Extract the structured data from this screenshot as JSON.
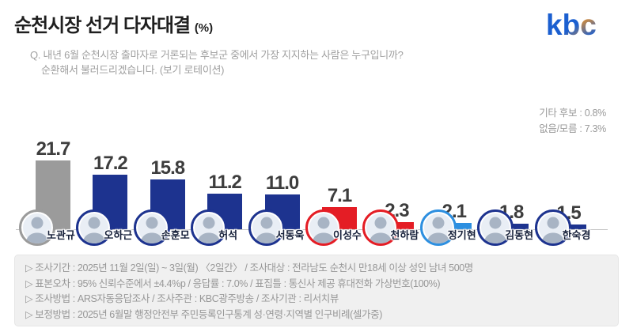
{
  "header": {
    "title": "순천시장 선거 다자대결",
    "title_unit": "(%)",
    "question_line1": "Q. 내년 6월 순천시장 출마자로 거론되는 후보군 중에서 가장 지지하는 사람은 누구입니까?",
    "question_line2": "순환해서 불러드리겠습니다. (보기 로테이션)",
    "logo_letters": [
      "k",
      "b",
      "c"
    ],
    "logo_colors": {
      "blue": "#1b5fd0",
      "orange": "#f7941d"
    }
  },
  "aside": {
    "etc_label": "기타 후보 : 0.8%",
    "none_label": "없음/모름 : 7.3%"
  },
  "chart_data": {
    "type": "bar",
    "title": "순천시장 선거 다자대결 (%)",
    "unit": "%",
    "categories": [
      "노관규",
      "오하근",
      "손훈모",
      "허석",
      "서동욱",
      "이성수",
      "천하람",
      "정기현",
      "김동현",
      "한숙경"
    ],
    "values": [
      21.7,
      17.2,
      15.8,
      11.2,
      11.0,
      7.1,
      2.3,
      2.1,
      1.8,
      1.5
    ],
    "value_labels": [
      "21.7",
      "17.2",
      "15.8",
      "11.2",
      "11.0",
      "7.1",
      "2.3",
      "2.1",
      "1.8",
      "1.5"
    ],
    "bar_colors": [
      "#9b9b9b",
      "#1d338f",
      "#1d338f",
      "#1d338f",
      "#1d338f",
      "#e41d25",
      "#e41d25",
      "#2d8fe0",
      "#1d338f",
      "#1d338f"
    ],
    "ring_colors": [
      "#9b9b9b",
      "#1d338f",
      "#1d338f",
      "#1d338f",
      "#1d338f",
      "#e41d25",
      "#e41d25",
      "#2d8fe0",
      "#1d338f",
      "#1d338f"
    ],
    "ylim": [
      0,
      25
    ],
    "grid": false,
    "legend": "none",
    "other_results": {
      "기타 후보": 0.8,
      "없음/모름": 7.3
    }
  },
  "footer": {
    "lines": [
      "▷ 조사기간 : 2025년 11월 2일(일) ~ 3일(월) 〈2일간〉 / 조사대상 : 전라남도 순천시 만18세 이상 성인 남녀 500명",
      "▷ 표본오차 : 95% 신뢰수준에서 ±4.4%p / 응답률 : 7.0% / 표집틀 : 통신사 제공 휴대전화 가상번호(100%)",
      "▷ 조사방법 : ARS자동응답조사 / 조사주관 : KBC광주방송 / 조사기관 : 리서치뷰",
      "▷ 보정방법 : 2025년 6월말 행정안전부 주민등록인구통계 성·연령·지역별 인구비례(셀가중)"
    ]
  }
}
